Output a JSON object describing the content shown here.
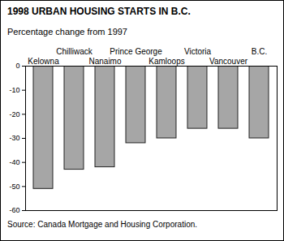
{
  "chart_data": {
    "type": "bar",
    "title": "1998 URBAN HOUSING STARTS IN B.C.",
    "subtitle": "Percentage change from 1997",
    "caption": "Source: Canada Mortgage and Housing Corporation.",
    "categories": [
      "Kelowna",
      "Chilliwack",
      "Nanaimo",
      "Prince George",
      "Kamloops",
      "Victoria",
      "Vancouver",
      "B.C."
    ],
    "values": [
      -51,
      -43,
      -42,
      -32,
      -30,
      -26,
      -26,
      -30
    ],
    "color": "#a6a6a6",
    "ylim": [
      -60,
      0
    ],
    "yticks": [
      0,
      -10,
      -20,
      -30,
      -40,
      -50,
      -60
    ],
    "grid": false
  }
}
